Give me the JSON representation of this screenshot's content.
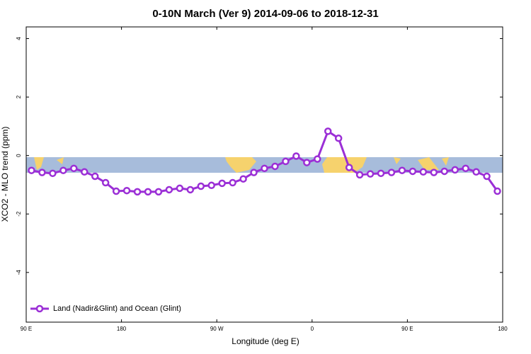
{
  "chart_data": {
    "type": "line",
    "title": "0-10N March (Ver 9)   2014-09-06 to 2018-12-31",
    "x_label": "Longitude (deg E)",
    "y_label": "XCO2 - MLO trend (ppm)",
    "x": [
      95,
      105,
      115,
      125,
      135,
      145,
      155,
      165,
      175,
      185,
      195,
      205,
      215,
      225,
      235,
      245,
      255,
      265,
      275,
      285,
      295,
      305,
      315,
      325,
      335,
      345,
      355,
      365,
      375,
      385,
      395,
      405,
      415,
      425,
      435,
      445,
      455,
      465,
      475,
      485,
      495,
      505,
      515,
      525,
      535
    ],
    "series": [
      {
        "name": "Land (Nadir&Glint) and Ocean (Glint)",
        "color": "#9b2fd6",
        "values": [
          -0.51,
          -0.58,
          -0.61,
          -0.51,
          -0.44,
          -0.56,
          -0.71,
          -0.93,
          -1.22,
          -1.2,
          -1.24,
          -1.24,
          -1.24,
          -1.17,
          -1.12,
          -1.17,
          -1.05,
          -1.02,
          -0.95,
          -0.93,
          -0.8,
          -0.58,
          -0.44,
          -0.37,
          -0.2,
          -0.02,
          -0.24,
          -0.12,
          0.83,
          0.59,
          -0.41,
          -0.66,
          -0.63,
          -0.61,
          -0.58,
          -0.51,
          -0.54,
          -0.56,
          -0.58,
          -0.54,
          -0.49,
          -0.44,
          -0.56,
          -0.71,
          -1.22
        ]
      }
    ],
    "xlim": [
      90,
      540
    ],
    "xticks": [
      {
        "value": 90,
        "label": "90 E"
      },
      {
        "value": 180,
        "label": "180"
      },
      {
        "value": 270,
        "label": "90 W"
      },
      {
        "value": 360,
        "label": "0"
      },
      {
        "value": 450,
        "label": "90 E"
      },
      {
        "value": 540,
        "label": "180"
      }
    ],
    "ylim": [
      -5.7,
      4.4
    ],
    "yticks": [
      -4,
      -2,
      0,
      2,
      4
    ],
    "legend": "bottom-left"
  }
}
